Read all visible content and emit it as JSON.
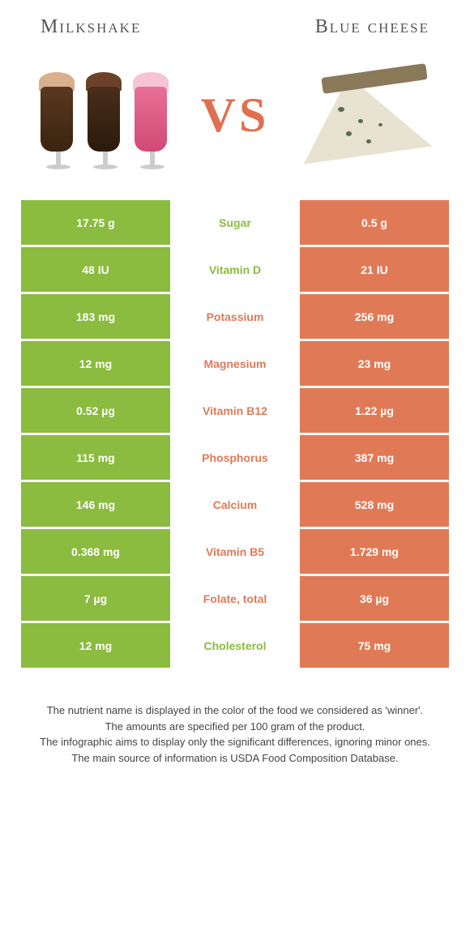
{
  "header": {
    "left_title": "Milkshake",
    "right_title": "Blue cheese",
    "vs_text": "VS"
  },
  "colors": {
    "green": "#8bbb3f",
    "orange": "#e07a56",
    "white": "#ffffff"
  },
  "rows": [
    {
      "left": "17.75 g",
      "label": "Sugar",
      "right": "0.5 g",
      "winner": "left"
    },
    {
      "left": "48 IU",
      "label": "Vitamin D",
      "right": "21 IU",
      "winner": "left"
    },
    {
      "left": "183 mg",
      "label": "Potassium",
      "right": "256 mg",
      "winner": "right"
    },
    {
      "left": "12 mg",
      "label": "Magnesium",
      "right": "23 mg",
      "winner": "right"
    },
    {
      "left": "0.52 µg",
      "label": "Vitamin B12",
      "right": "1.22 µg",
      "winner": "right"
    },
    {
      "left": "115 mg",
      "label": "Phosphorus",
      "right": "387 mg",
      "winner": "right"
    },
    {
      "left": "146 mg",
      "label": "Calcium",
      "right": "528 mg",
      "winner": "right"
    },
    {
      "left": "0.368 mg",
      "label": "Vitamin B5",
      "right": "1.729 mg",
      "winner": "right"
    },
    {
      "left": "7 µg",
      "label": "Folate, total",
      "right": "36 µg",
      "winner": "right"
    },
    {
      "left": "12 mg",
      "label": "Cholesterol",
      "right": "75 mg",
      "winner": "left"
    }
  ],
  "footer": {
    "line1": "The nutrient name is displayed in the color of the food we considered as 'winner'.",
    "line2": "The amounts are specified per 100 gram of the product.",
    "line3": "The infographic aims to display only the significant differences, ignoring minor ones.",
    "line4": "The main source of information is USDA Food Composition Database."
  }
}
